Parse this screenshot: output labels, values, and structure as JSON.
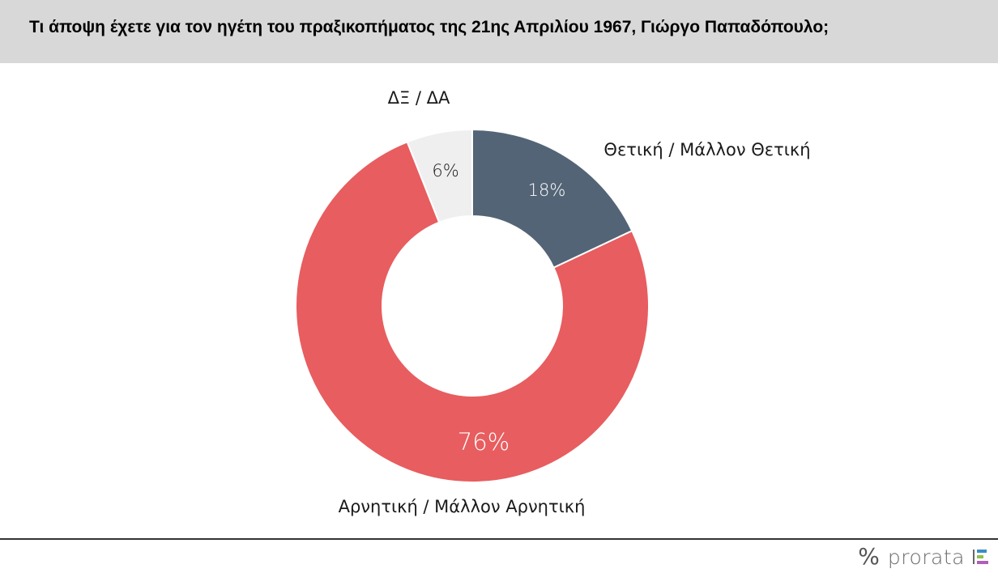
{
  "header": {
    "title": "Τι άποψη έχετε για τον ηγέτη του πραξικοπήματος της 21ης Απριλίου 1967, Γιώργο Παπαδόπουλο;"
  },
  "chart_data": {
    "type": "pie",
    "donut": true,
    "categories": [
      "Θετική / Μάλλον Θετική",
      "Αρνητική / Μάλλον Αρνητική",
      "ΔΞ / ΔΑ"
    ],
    "values": [
      18,
      76,
      6
    ],
    "value_labels": [
      "18%",
      "76%",
      "6%"
    ],
    "colors": [
      "#536476",
      "#e85d5f",
      "#efefef"
    ],
    "value_label_colors": [
      "#ffffff",
      "#ffffff",
      "#1a1a1a"
    ]
  },
  "footer": {
    "brand": "prorata",
    "icon": "percent-icon",
    "bar_colors": [
      "#3c8dc5",
      "#8bc34a",
      "#b05fb9"
    ]
  }
}
